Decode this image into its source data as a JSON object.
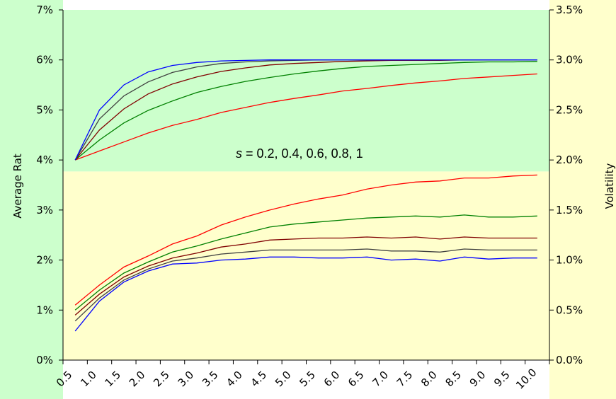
{
  "chart_data": {
    "type": "line",
    "ylabel_left": "Average Rat",
    "ylabel_right": "Volatility",
    "annotation": {
      "italic_part": "s",
      "rest": " = 0.2, 0.4, 0.6, 0.8, 1"
    },
    "colors": {
      "top_background": "#ccffcc",
      "bottom_background": "#ffffcc",
      "outer_background": "#ffffff"
    },
    "x_tick_labels": [
      "0.5",
      "1.0",
      "1.5",
      "2.0",
      "2.5",
      "3.0",
      "3.5",
      "4.0",
      "4.5",
      "5.0",
      "5.5",
      "6.0",
      "6.5",
      "7.0",
      "7.5",
      "8.0",
      "8.5",
      "9.0",
      "9.5",
      "10.0"
    ],
    "x": [
      0.75,
      1.25,
      1.75,
      2.25,
      2.75,
      3.25,
      3.75,
      4.25,
      4.75,
      5.25,
      5.75,
      6.25,
      6.75,
      7.25,
      7.75,
      8.25,
      8.75,
      9.25,
      9.75,
      10.25
    ],
    "xlim": [
      0.5,
      10.5
    ],
    "left_axis": {
      "ylim": [
        0,
        7
      ],
      "tick_values": [
        0,
        1,
        2,
        3,
        4,
        5,
        6,
        7
      ],
      "tick_labels": [
        "0%",
        "1%",
        "2%",
        "3%",
        "4%",
        "5%",
        "6%",
        "7%"
      ]
    },
    "right_axis": {
      "ylim": [
        0,
        3.5
      ],
      "tick_values": [
        0,
        0.5,
        1.0,
        1.5,
        2.0,
        2.5,
        3.0,
        3.5
      ],
      "tick_labels": [
        "0.0%",
        "0.5%",
        "1.0%",
        "1.5%",
        "2.0%",
        "2.5%",
        "3.0%",
        "3.5%"
      ]
    },
    "average_rate_series": [
      {
        "color": "#ff0000",
        "axis": "left",
        "values": [
          4.0,
          4.18,
          4.36,
          4.54,
          4.69,
          4.81,
          4.95,
          5.05,
          5.15,
          5.23,
          5.3,
          5.38,
          5.43,
          5.49,
          5.54,
          5.58,
          5.63,
          5.66,
          5.69,
          5.72
        ]
      },
      {
        "color": "#008000",
        "axis": "left",
        "values": [
          4.0,
          4.4,
          4.74,
          4.99,
          5.18,
          5.35,
          5.47,
          5.57,
          5.65,
          5.72,
          5.78,
          5.83,
          5.87,
          5.89,
          5.91,
          5.93,
          5.95,
          5.96,
          5.96,
          5.97
        ]
      },
      {
        "color": "#800000",
        "axis": "left",
        "values": [
          4.0,
          4.6,
          5.02,
          5.32,
          5.52,
          5.66,
          5.77,
          5.84,
          5.9,
          5.93,
          5.95,
          5.97,
          5.98,
          5.99,
          5.99,
          5.99,
          6.0,
          6.0,
          6.0,
          6.0
        ]
      },
      {
        "color": "#404040",
        "axis": "left",
        "values": [
          4.0,
          4.82,
          5.28,
          5.56,
          5.75,
          5.86,
          5.93,
          5.96,
          5.98,
          5.99,
          6.0,
          6.0,
          6.0,
          6.0,
          6.0,
          6.0,
          6.0,
          6.0,
          6.0,
          6.0
        ]
      },
      {
        "color": "#0000ff",
        "axis": "left",
        "values": [
          4.0,
          5.0,
          5.5,
          5.76,
          5.89,
          5.95,
          5.98,
          5.99,
          6.0,
          6.0,
          6.0,
          6.0,
          6.0,
          6.0,
          6.0,
          6.0,
          6.0,
          6.0,
          6.0,
          6.0
        ]
      }
    ],
    "volatility_series": [
      {
        "color": "#ff0000",
        "axis": "right",
        "values": [
          0.55,
          0.75,
          0.93,
          1.04,
          1.16,
          1.24,
          1.35,
          1.43,
          1.5,
          1.56,
          1.61,
          1.65,
          1.71,
          1.75,
          1.78,
          1.79,
          1.82,
          1.82,
          1.84,
          1.85
        ]
      },
      {
        "color": "#008000",
        "axis": "right",
        "values": [
          0.5,
          0.7,
          0.87,
          0.98,
          1.08,
          1.14,
          1.21,
          1.27,
          1.33,
          1.36,
          1.38,
          1.4,
          1.42,
          1.43,
          1.44,
          1.43,
          1.45,
          1.43,
          1.43,
          1.44
        ]
      },
      {
        "color": "#800000",
        "axis": "right",
        "values": [
          0.45,
          0.66,
          0.83,
          0.94,
          1.02,
          1.07,
          1.13,
          1.16,
          1.2,
          1.21,
          1.22,
          1.22,
          1.23,
          1.22,
          1.23,
          1.21,
          1.23,
          1.22,
          1.22,
          1.22
        ]
      },
      {
        "color": "#404040",
        "axis": "right",
        "values": [
          0.39,
          0.62,
          0.8,
          0.91,
          0.99,
          1.02,
          1.06,
          1.08,
          1.1,
          1.1,
          1.1,
          1.1,
          1.11,
          1.09,
          1.09,
          1.08,
          1.11,
          1.1,
          1.1,
          1.1
        ]
      },
      {
        "color": "#0000ff",
        "axis": "right",
        "values": [
          0.29,
          0.59,
          0.78,
          0.89,
          0.96,
          0.97,
          1.0,
          1.01,
          1.03,
          1.03,
          1.02,
          1.02,
          1.03,
          1.0,
          1.01,
          0.99,
          1.03,
          1.01,
          1.02,
          1.02
        ]
      }
    ],
    "shading": [
      {
        "region": "top",
        "from_left_value": 3.77,
        "to_left_value": 7,
        "color_key": "top_background"
      },
      {
        "region": "bottom",
        "from_left_value": 0,
        "to_left_value": 3.77,
        "color_key": "bottom_background"
      }
    ],
    "grid": false,
    "legend": "none"
  }
}
